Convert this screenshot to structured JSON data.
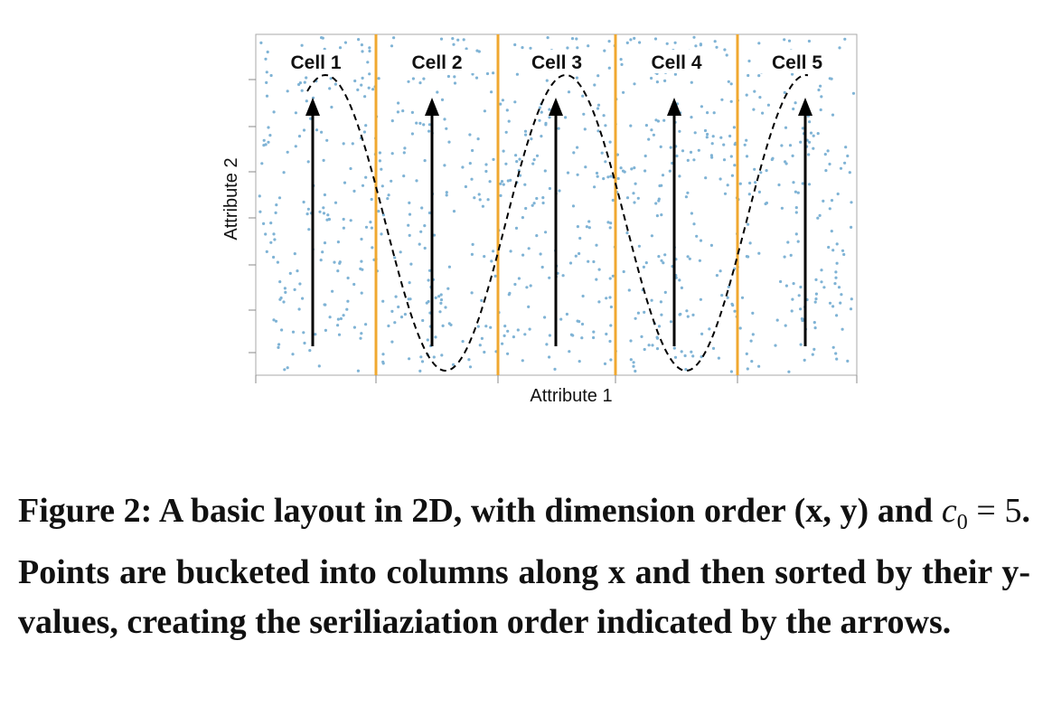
{
  "diagram": {
    "cells": [
      "Cell 1",
      "Cell 2",
      "Cell 3",
      "Cell 4",
      "Cell 5"
    ],
    "x_axis_label": "Attribute 1",
    "y_axis_label": "Attribute 2",
    "colors": {
      "points": "#7fb3d5",
      "cell_divider": "#f0a830",
      "arrow": "#000000",
      "serpentine": "#000000",
      "frame": "#999999"
    }
  },
  "caption": {
    "lead": "Figure 2: A basic layout in 2D, with dimension order (x, y) and ",
    "math_var": "c",
    "math_sub": "0",
    "math_eq": " = ",
    "math_num": "5",
    "rest": ". Points are bucketed into columns along x and then sorted by their y-values, creating the seriliaziation order indicated by the arrows."
  }
}
